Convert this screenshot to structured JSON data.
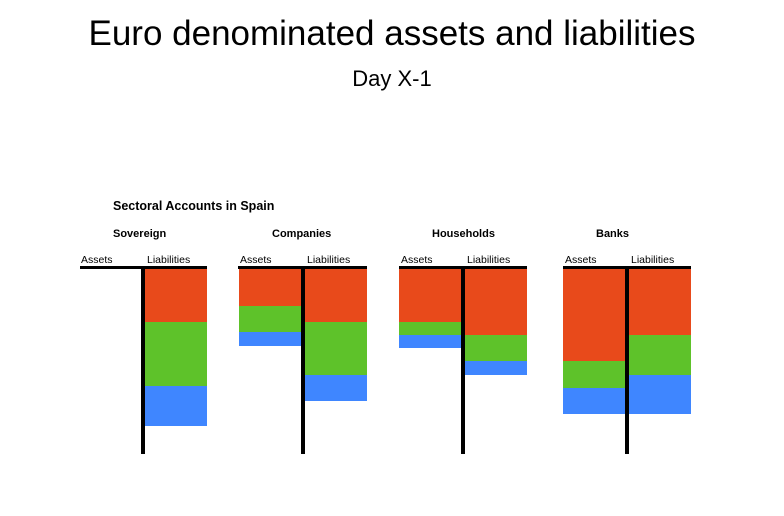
{
  "title": "Euro denominated assets and liabilities",
  "subtitle": "Day X-1",
  "diagram_title": "Sectoral Accounts in Spain",
  "assets_label": "Assets",
  "liabilities_label": "Liabilities",
  "colors": {
    "red": "#e84a1b",
    "green": "#5ec22a",
    "blue": "#3f86ff"
  },
  "sectors": [
    {
      "name": "Sovereign",
      "assets": [],
      "liabilities": [
        {
          "color": "red",
          "size": 40
        },
        {
          "color": "green",
          "size": 49
        },
        {
          "color": "blue",
          "size": 30
        }
      ]
    },
    {
      "name": "Companies",
      "assets": [
        {
          "color": "red",
          "size": 28
        },
        {
          "color": "green",
          "size": 20
        },
        {
          "color": "blue",
          "size": 10
        }
      ],
      "liabilities": [
        {
          "color": "red",
          "size": 40
        },
        {
          "color": "green",
          "size": 40
        },
        {
          "color": "blue",
          "size": 20
        }
      ]
    },
    {
      "name": "Households",
      "assets": [
        {
          "color": "red",
          "size": 40
        },
        {
          "color": "green",
          "size": 10
        },
        {
          "color": "blue",
          "size": 10
        }
      ],
      "liabilities": [
        {
          "color": "red",
          "size": 50
        },
        {
          "color": "green",
          "size": 20
        },
        {
          "color": "blue",
          "size": 10
        }
      ]
    },
    {
      "name": "Banks",
      "assets": [
        {
          "color": "red",
          "size": 70
        },
        {
          "color": "green",
          "size": 20
        },
        {
          "color": "blue",
          "size": 20
        }
      ],
      "liabilities": [
        {
          "color": "red",
          "size": 50
        },
        {
          "color": "green",
          "size": 30
        },
        {
          "color": "blue",
          "size": 30
        }
      ]
    }
  ]
}
